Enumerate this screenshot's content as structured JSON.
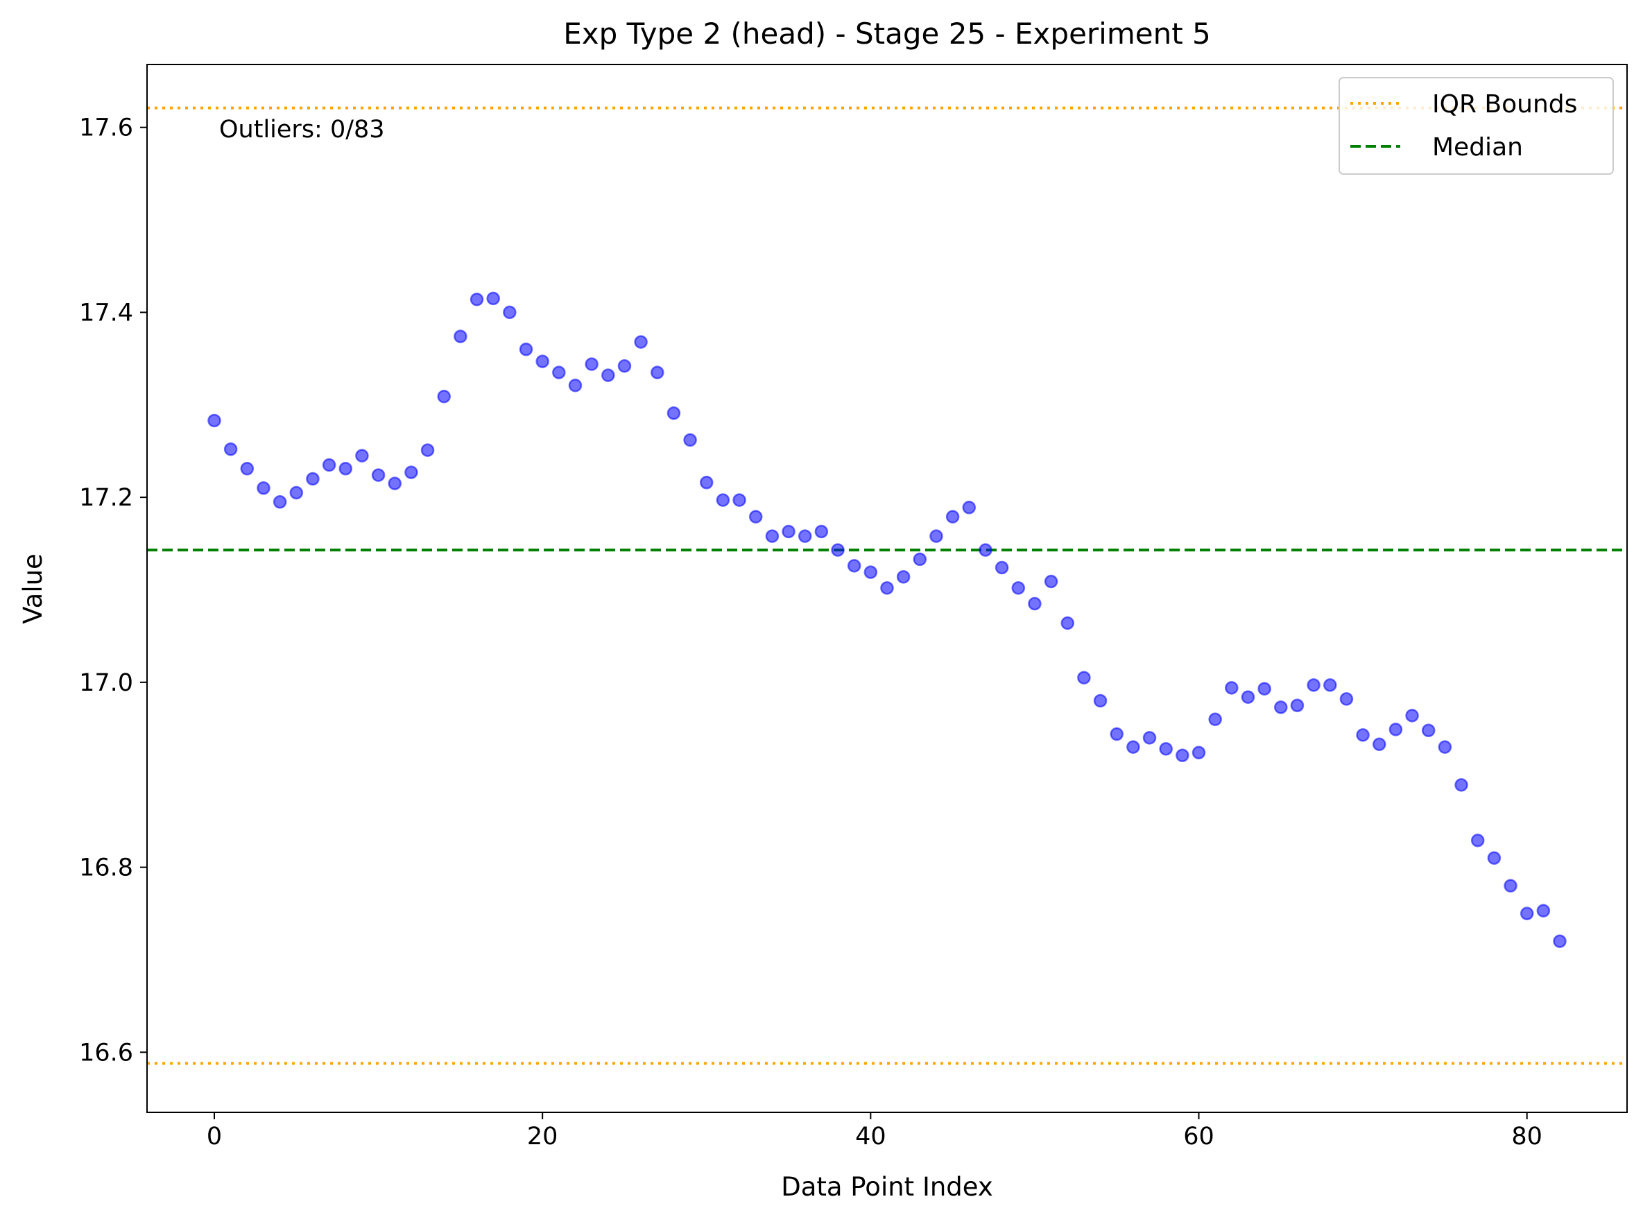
{
  "chart_data": {
    "type": "scatter",
    "title": "Exp Type 2 (head) - Stage 25 - Experiment 5",
    "xlabel": "Data Point Index",
    "ylabel": "Value",
    "xlim": [
      -4.1,
      86.1
    ],
    "ylim": [
      16.535,
      17.668
    ],
    "xticks": [
      0,
      20,
      40,
      60,
      80
    ],
    "yticks": [
      16.6,
      16.8,
      17.0,
      17.2,
      17.4,
      17.6
    ],
    "xtick_labels": [
      "0",
      "20",
      "40",
      "60",
      "80"
    ],
    "ytick_labels": [
      "16.6",
      "16.8",
      "17.0",
      "17.2",
      "17.4",
      "17.6"
    ],
    "grid": false,
    "legend_position": "top-right",
    "annotation": "Outliers: 0/83",
    "legend": [
      {
        "label": "IQR Bounds",
        "style": "dotted",
        "color": "#ffa500"
      },
      {
        "label": "Median",
        "style": "dashed",
        "color": "#008000"
      }
    ],
    "point_color": "#0000ff",
    "median": 17.143,
    "iqr_bounds": [
      16.588,
      17.621
    ],
    "x": [
      0,
      1,
      2,
      3,
      4,
      5,
      6,
      7,
      8,
      9,
      10,
      11,
      12,
      13,
      14,
      15,
      16,
      17,
      18,
      19,
      20,
      21,
      22,
      23,
      24,
      25,
      26,
      27,
      28,
      29,
      30,
      31,
      32,
      33,
      34,
      35,
      36,
      37,
      38,
      39,
      40,
      41,
      42,
      43,
      44,
      45,
      46,
      47,
      48,
      49,
      50,
      51,
      52,
      53,
      54,
      55,
      56,
      57,
      58,
      59,
      60,
      61,
      62,
      63,
      64,
      65,
      66,
      67,
      68,
      69,
      70,
      71,
      72,
      73,
      74,
      75,
      76,
      77,
      78,
      79,
      80,
      81,
      82
    ],
    "y": [
      17.283,
      17.252,
      17.231,
      17.21,
      17.195,
      17.205,
      17.22,
      17.235,
      17.231,
      17.245,
      17.224,
      17.215,
      17.227,
      17.251,
      17.309,
      17.374,
      17.414,
      17.415,
      17.4,
      17.36,
      17.347,
      17.335,
      17.321,
      17.344,
      17.332,
      17.342,
      17.368,
      17.335,
      17.291,
      17.262,
      17.216,
      17.197,
      17.197,
      17.179,
      17.158,
      17.163,
      17.158,
      17.163,
      17.143,
      17.126,
      17.119,
      17.102,
      17.114,
      17.133,
      17.158,
      17.179,
      17.189,
      17.143,
      17.124,
      17.102,
      17.085,
      17.109,
      17.064,
      17.005,
      16.98,
      16.944,
      16.93,
      16.94,
      16.928,
      16.921,
      16.924,
      16.96,
      16.994,
      16.984,
      16.993,
      16.973,
      16.975,
      16.997,
      16.997,
      16.982,
      16.943,
      16.933,
      16.949,
      16.964,
      16.948,
      16.93,
      16.889,
      16.829,
      16.81,
      16.78,
      16.75,
      16.753,
      16.72
    ]
  }
}
